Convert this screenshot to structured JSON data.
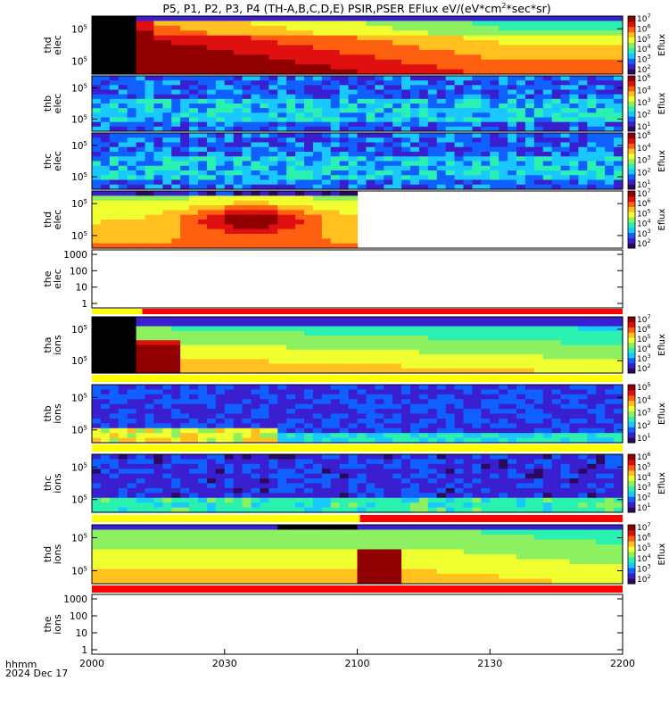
{
  "title": "P5, P1, P2, P3, P4 (TH-A,B,C,D,E) PSIR,PSER EFlux eV/(eV*cm",
  "title_sup": "2",
  "title_tail": "*sec*sr)",
  "time_axis": {
    "ticks": [
      "2000",
      "2030",
      "2100",
      "2130",
      "2200"
    ],
    "label_line1": "hhmm",
    "label_line2": "2024 Dec 17"
  },
  "colorbar_label": "Eflux",
  "colors": {
    "ramp": [
      "#2a0a5e",
      "#3a1fd0",
      "#1060ff",
      "#19c8ff",
      "#2af0b0",
      "#8cf060",
      "#f0ff30",
      "#ffc020",
      "#ff6010",
      "#e01010",
      "#900000"
    ],
    "mode_yellow": "#ffff00",
    "mode_red": "#ff0000",
    "no_data": "#000000"
  },
  "chart_data": [
    {
      "type": "heatmap",
      "label": [
        "thd",
        "elec"
      ],
      "profile": "elec_hot",
      "ylog_ticks": [
        "10^5",
        "10^5"
      ],
      "cbar": [
        "10^7",
        "10^6",
        "10^5",
        "10^4",
        "10^3",
        "10^2"
      ],
      "columns": [
        0,
        17,
        26,
        36,
        46,
        56,
        66,
        76,
        86,
        96,
        100
      ]
    },
    {
      "type": "heatmap",
      "label": [
        "thb",
        "elec"
      ],
      "profile": "noise",
      "ylog_ticks": [
        "10^5",
        "10^5"
      ],
      "cbar": [
        "10^6",
        "10^4",
        "10^3",
        "10^2",
        "10^1"
      ]
    },
    {
      "type": "heatmap",
      "label": [
        "thc",
        "elec"
      ],
      "profile": "noise",
      "ylog_ticks": [
        "10^5",
        "10^5"
      ],
      "cbar": [
        "10^6",
        "10^4",
        "10^3",
        "10^2",
        "10^1"
      ]
    },
    {
      "type": "heatmap",
      "label": [
        "thd",
        "elec"
      ],
      "profile": "partial",
      "ylog_ticks": [
        "10^5",
        "10^5"
      ],
      "cbar": [
        "10^7",
        "10^6",
        "10^5",
        "10^4",
        "10^3",
        "10^2"
      ],
      "data_end_fraction": 0.495
    },
    {
      "type": "empty",
      "label": [
        "the",
        "elec"
      ],
      "ylog_ticks": [
        "1000",
        "100",
        "10",
        "1"
      ],
      "ylim": [
        1,
        1000
      ]
    },
    {
      "type": "heatmap",
      "label": [
        "tha",
        "ions"
      ],
      "profile": "ions_hot",
      "ylog_ticks": [
        "10^5",
        "10^5"
      ],
      "cbar": [
        "10^7",
        "10^6",
        "10^5",
        "10^4",
        "10^3",
        "10^2"
      ]
    },
    {
      "type": "heatmap",
      "label": [
        "thb",
        "ions"
      ],
      "profile": "ions_low",
      "ylog_ticks": [
        "10^5",
        "10^5"
      ],
      "cbar": [
        "10^5",
        "10^4",
        "10^3",
        "10^2",
        "10^1"
      ]
    },
    {
      "type": "heatmap",
      "label": [
        "thc",
        "ions"
      ],
      "profile": "ions_noise",
      "ylog_ticks": [
        "10^5",
        "10^5"
      ],
      "cbar": [
        "10^6",
        "10^5",
        "10^4",
        "10^3",
        "10^2",
        "10^1"
      ]
    },
    {
      "type": "heatmap",
      "label": [
        "thd",
        "ions"
      ],
      "profile": "ions_late",
      "ylog_ticks": [
        "10^5",
        "10^5"
      ],
      "cbar": [
        "10^7",
        "10^6",
        "10^5",
        "10^4",
        "10^3",
        "10^2"
      ]
    },
    {
      "type": "empty",
      "label": [
        "the",
        "ions"
      ],
      "ylog_ticks": [
        "1000",
        "100",
        "10",
        "1"
      ],
      "ylim": [
        1,
        1000
      ]
    }
  ],
  "mode_bars": [
    {
      "segments": [
        {
          "color": "yellow",
          "from": 0,
          "to": 0.095
        },
        {
          "color": "red",
          "from": 0.095,
          "to": 1
        }
      ]
    },
    {
      "segments": [
        {
          "color": "yellow",
          "from": 0,
          "to": 1
        }
      ]
    },
    {
      "segments": [
        {
          "color": "yellow",
          "from": 0,
          "to": 1
        }
      ]
    },
    {
      "segments": [
        {
          "color": "yellow",
          "from": 0,
          "to": 0.505
        },
        {
          "color": "red",
          "from": 0.505,
          "to": 1
        }
      ]
    },
    {
      "segments": [
        {
          "color": "red",
          "from": 0,
          "to": 1
        }
      ]
    }
  ]
}
